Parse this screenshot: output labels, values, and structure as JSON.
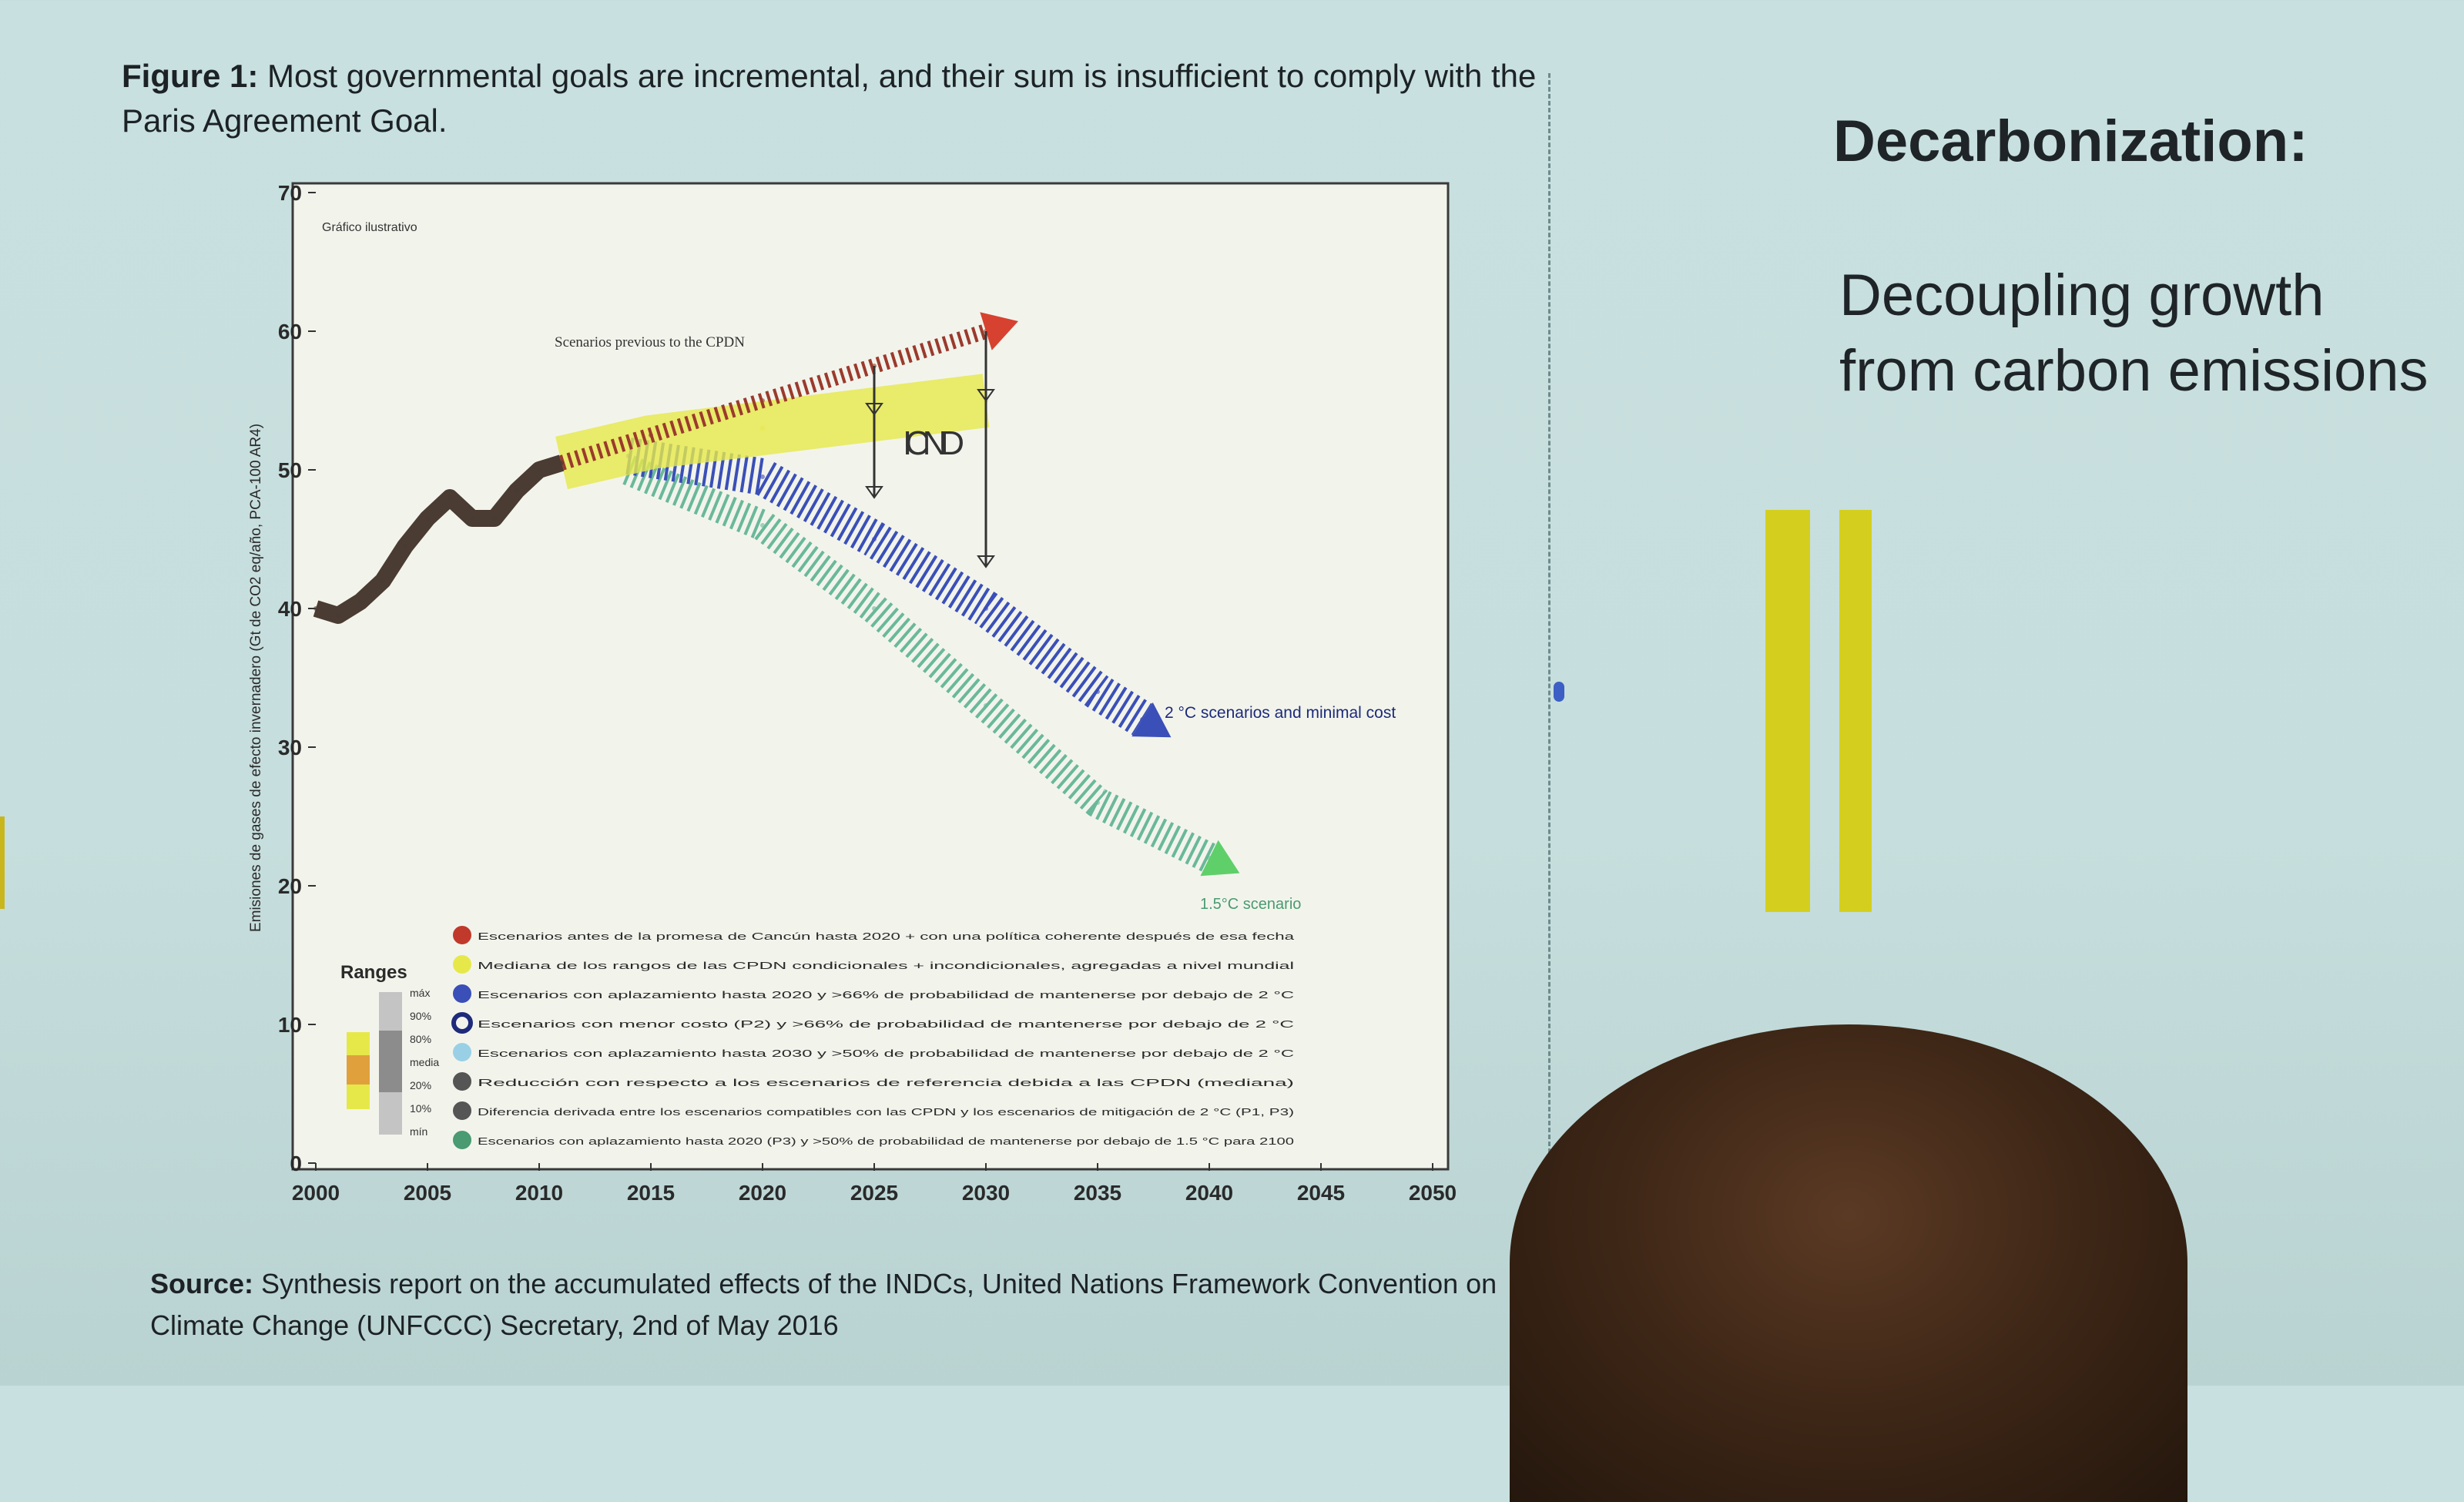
{
  "figure": {
    "title_bold": "Figure 1:",
    "title_text": " Most governmental goals are incremental, and their sum is insufficient to comply with the Paris Agreement Goal.",
    "source_bold": "Source:",
    "source_text": " Synthesis report on the accumulated effects of the INDCs, United Nations Framework Convention on Climate Change (UNFCCC) Secretary, 2nd of May 2016"
  },
  "side": {
    "heading": "Decarbonization:",
    "subheading": "Decoupling growth from carbon emissions"
  },
  "colors": {
    "historical": "#4a3b33",
    "previous_scenarios": "#9b3a2c",
    "indc": "#e6e84a",
    "two_degree": "#3a4fb8",
    "one_five_degree": "#6ab89a",
    "arrow_red": "#d6422f",
    "bar_yellow": "#d4cf1e"
  },
  "chart_data": {
    "type": "line",
    "title": "Gráfico ilustrativo",
    "ylabel": "Emisiones de gases de efecto invernadero (Gt de CO2 eq/año, PCA-100 AR4)",
    "xlabel": "",
    "xlim": [
      2000,
      2050
    ],
    "ylim": [
      0,
      70
    ],
    "x_ticks": [
      2000,
      2005,
      2010,
      2015,
      2020,
      2025,
      2030,
      2035,
      2040,
      2045,
      2050
    ],
    "y_ticks": [
      0,
      10,
      20,
      30,
      40,
      50,
      60,
      70
    ],
    "series": [
      {
        "name": "",
        "x": [
          2000,
          2001,
          2002,
          2003,
          2004,
          2005,
          2006,
          2007,
          2008,
          2009,
          2010,
          2011
        ],
        "y": [
          40,
          39.5,
          40.5,
          42,
          44.5,
          46.5,
          48,
          46.5,
          46.5,
          48.5,
          50,
          50.5
        ]
      },
      {
        "name": "Scenarios previous to the CPDN",
        "x": [
          2011,
          2015,
          2020,
          2025,
          2030
        ],
        "y": [
          50.5,
          52.5,
          55,
          57.5,
          60
        ]
      },
      {
        "name": "ICND",
        "x": [
          2011,
          2015,
          2020,
          2025,
          2030
        ],
        "y": [
          50.5,
          52,
          53,
          54,
          55
        ]
      },
      {
        "name": "2 °C scenarios and minimal cost",
        "x": [
          2014,
          2020,
          2025,
          2030,
          2035,
          2037
        ],
        "y": [
          51,
          49.5,
          45,
          40,
          34,
          32
        ]
      },
      {
        "name": "1.5°C scenario",
        "x": [
          2014,
          2020,
          2025,
          2030,
          2035,
          2040
        ],
        "y": [
          50,
          46,
          40,
          33,
          26,
          22
        ]
      }
    ],
    "annotations": [
      "Gráfico ilustrativo",
      "Scenarios previous to the CPDN",
      "ICND",
      "2 °C scenarios and minimal cost",
      "1.5°C scenario"
    ],
    "ranges": {
      "label": "Ranges",
      "items": [
        "máx",
        "90%",
        "80%",
        "media",
        "20%",
        "10%",
        "mín"
      ]
    },
    "legend": [
      "Escenarios antes de la promesa de Cancún hasta 2020 + con una política coherente después de esa fecha",
      "Mediana de los rangos de las CPDN condicionales + incondicionales, agregadas a nivel mundial",
      "Escenarios con aplazamiento hasta 2020 y >66% de probabilidad de mantenerse por debajo de 2 °C",
      "Escenarios con menor costo (P2) y >66% de probabilidad de mantenerse por debajo de 2 °C",
      "Escenarios con aplazamiento hasta 2030 y >50% de probabilidad de mantenerse por debajo de 2 °C",
      "Reducción con respecto a los escenarios de referencia debida a las CPDN (mediana)",
      "Diferencia derivada entre los escenarios compatibles con las CPDN y los escenarios de mitigación de 2 °C (P1, P3)",
      "Escenarios con aplazamiento hasta 2020 (P3) y >50% de probabilidad de mantenerse por debajo de 1.5 °C para 2100"
    ],
    "legend_placement": "bottom-right",
    "grid": false
  }
}
